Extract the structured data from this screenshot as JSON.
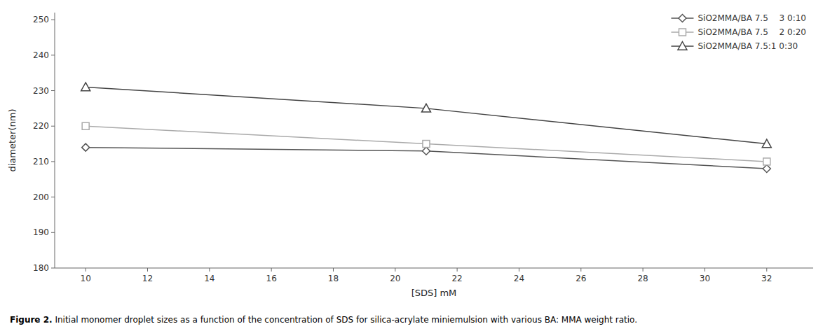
{
  "chart_data": {
    "type": "line",
    "x": [
      10,
      21,
      32
    ],
    "series": [
      {
        "name": "SiO2MMA/BA 7.5  3 0:10",
        "values": [
          214,
          213,
          208
        ],
        "color": "#555555",
        "marker": "diamond"
      },
      {
        "name": "SiO2MMA/BA 7.5  2 0:20",
        "values": [
          220,
          215,
          210
        ],
        "color": "#aaaaaa",
        "marker": "square"
      },
      {
        "name": "SiO2MMA/BA 7.5:1 0:30",
        "values": [
          231,
          225,
          215
        ],
        "color": "#444444",
        "marker": "triangle"
      }
    ],
    "x_label": "[SDS] mM",
    "y_label": "diameter(nm)",
    "xlim": [
      9,
      33.5
    ],
    "ylim": [
      180,
      252
    ],
    "xticks": [
      10,
      12,
      14,
      16,
      18,
      20,
      22,
      24,
      26,
      28,
      30,
      32
    ],
    "yticks": [
      180,
      190,
      200,
      210,
      220,
      230,
      240,
      250
    ],
    "grid": false,
    "legend": "upper right",
    "annotations": [
      "Figure 2.",
      " Initial monomer droplet sizes as a function of the concentration of SDS for silica-acrylate miniemulsion with various BA: MMA weight ratio."
    ]
  }
}
